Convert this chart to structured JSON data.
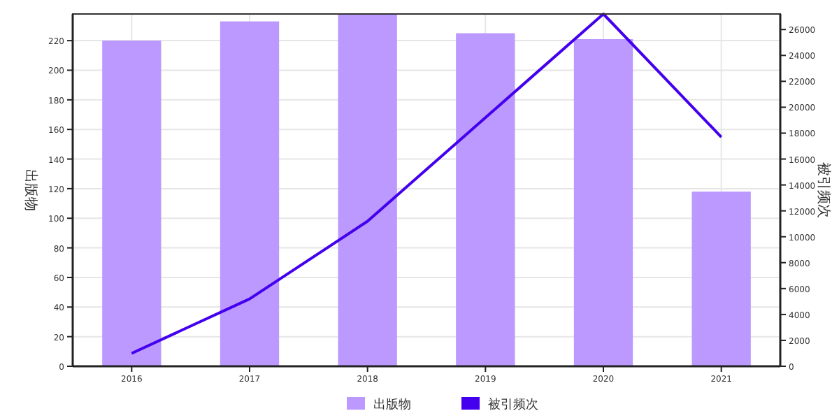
{
  "chart_data": {
    "type": "bar",
    "categories": [
      "2016",
      "2017",
      "2018",
      "2019",
      "2020",
      "2021"
    ],
    "ylabel": "出版物",
    "y2label": "被引频次",
    "series": [
      {
        "name": "出版物",
        "color": "#bb99ff",
        "values": [
          220,
          233,
          238,
          225,
          221,
          118
        ]
      },
      {
        "name": "被引频次",
        "type": "line",
        "axis": "y2",
        "color": "#4400ee",
        "values": [
          1000,
          5200,
          11200,
          19200,
          27200,
          17700
        ]
      }
    ],
    "ylim": [
      0,
      238
    ],
    "yticks": [
      0,
      20,
      40,
      60,
      80,
      100,
      120,
      140,
      160,
      180,
      200,
      220
    ],
    "y2lim": [
      0,
      27200
    ],
    "y2ticks": [
      0,
      2000,
      4000,
      6000,
      8000,
      10000,
      12000,
      14000,
      16000,
      18000,
      20000,
      22000,
      24000,
      26000
    ],
    "grid": true,
    "legend": "bottom",
    "marker": "none",
    "line_style": "solid"
  }
}
